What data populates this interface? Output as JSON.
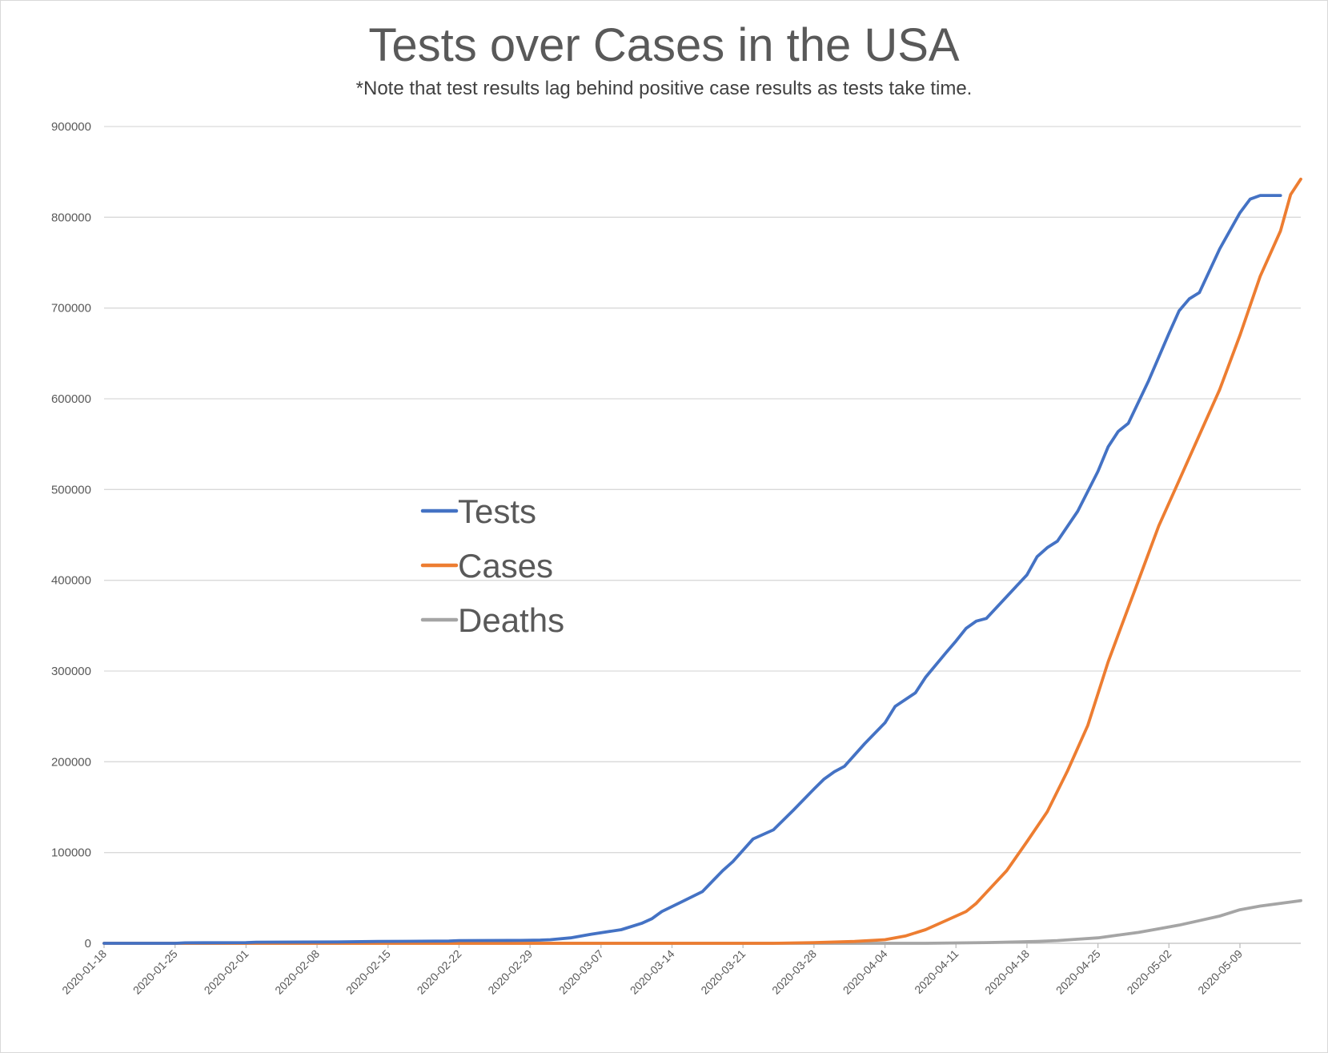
{
  "chart_data": {
    "type": "line",
    "title": "Tests over Cases in the USA",
    "subtitle": "*Note that test results lag behind positive case results as tests take time.",
    "xlabel": "",
    "ylabel": "",
    "ylim": [
      0,
      900000
    ],
    "yticks": [
      0,
      100000,
      200000,
      300000,
      400000,
      500000,
      600000,
      700000,
      800000,
      900000
    ],
    "x_start": "2020-01-18",
    "x_end": "2020-05-11",
    "xtick_labels": [
      "2020-01-18",
      "2020-01-25",
      "2020-02-01",
      "2020-02-08",
      "2020-02-15",
      "2020-02-22",
      "2020-02-29",
      "2020-03-07",
      "2020-03-14",
      "2020-03-21",
      "2020-03-28",
      "2020-04-04",
      "2020-04-11",
      "2020-04-18",
      "2020-04-25",
      "2020-05-02",
      "2020-05-09"
    ],
    "grid": true,
    "legend_position": "center-left",
    "series": [
      {
        "name": "Tests",
        "color": "#4472c4",
        "points": [
          [
            "2020-01-18",
            0
          ],
          [
            "2020-01-25",
            0
          ],
          [
            "2020-01-26",
            500
          ],
          [
            "2020-02-01",
            800
          ],
          [
            "2020-02-02",
            1200
          ],
          [
            "2020-02-10",
            1500
          ],
          [
            "2020-02-14",
            2000
          ],
          [
            "2020-02-21",
            2500
          ],
          [
            "2020-02-22",
            3000
          ],
          [
            "2020-02-28",
            3200
          ],
          [
            "2020-03-01",
            3500
          ],
          [
            "2020-03-02",
            4000
          ],
          [
            "2020-03-04",
            6000
          ],
          [
            "2020-03-06",
            10000
          ],
          [
            "2020-03-09",
            15000
          ],
          [
            "2020-03-11",
            22000
          ],
          [
            "2020-03-12",
            27000
          ],
          [
            "2020-03-13",
            35000
          ],
          [
            "2020-03-15",
            46000
          ],
          [
            "2020-03-17",
            57000
          ],
          [
            "2020-03-19",
            80000
          ],
          [
            "2020-03-20",
            90000
          ],
          [
            "2020-03-22",
            115000
          ],
          [
            "2020-03-24",
            125000
          ],
          [
            "2020-03-26",
            147000
          ],
          [
            "2020-03-28",
            170000
          ],
          [
            "2020-03-29",
            181000
          ],
          [
            "2020-03-30",
            189000
          ],
          [
            "2020-03-31",
            195000
          ],
          [
            "2020-04-02",
            220000
          ],
          [
            "2020-04-04",
            243000
          ],
          [
            "2020-04-05",
            261000
          ],
          [
            "2020-04-07",
            276000
          ],
          [
            "2020-04-08",
            293000
          ],
          [
            "2020-04-10",
            320000
          ],
          [
            "2020-04-11",
            333000
          ],
          [
            "2020-04-12",
            347000
          ],
          [
            "2020-04-13",
            355000
          ],
          [
            "2020-04-14",
            358000
          ],
          [
            "2020-04-16",
            382000
          ],
          [
            "2020-04-18",
            406000
          ],
          [
            "2020-04-19",
            426000
          ],
          [
            "2020-04-20",
            436000
          ],
          [
            "2020-04-21",
            443000
          ],
          [
            "2020-04-23",
            476000
          ],
          [
            "2020-04-25",
            520000
          ],
          [
            "2020-04-26",
            547000
          ],
          [
            "2020-04-27",
            564000
          ],
          [
            "2020-04-28",
            573000
          ],
          [
            "2020-04-30",
            620000
          ],
          [
            "2020-05-02",
            672000
          ],
          [
            "2020-05-03",
            697000
          ],
          [
            "2020-05-04",
            710000
          ],
          [
            "2020-05-05",
            717000
          ],
          [
            "2020-05-07",
            765000
          ],
          [
            "2020-05-08",
            785000
          ],
          [
            "2020-05-09",
            805000
          ],
          [
            "2020-05-10",
            820000
          ],
          [
            "2020-05-11",
            824000
          ],
          [
            "2020-05-12",
            824000
          ],
          [
            "2020-05-13",
            824000
          ]
        ]
      },
      {
        "name": "Cases",
        "color": "#ed7d31",
        "points": [
          [
            "2020-01-18",
            0
          ],
          [
            "2020-03-24",
            0
          ],
          [
            "2020-03-28",
            800
          ],
          [
            "2020-04-01",
            2000
          ],
          [
            "2020-04-04",
            4000
          ],
          [
            "2020-04-06",
            8000
          ],
          [
            "2020-04-08",
            15000
          ],
          [
            "2020-04-10",
            25000
          ],
          [
            "2020-04-12",
            35000
          ],
          [
            "2020-04-13",
            44000
          ],
          [
            "2020-04-14",
            56000
          ],
          [
            "2020-04-16",
            80000
          ],
          [
            "2020-04-18",
            112000
          ],
          [
            "2020-04-20",
            145000
          ],
          [
            "2020-04-22",
            190000
          ],
          [
            "2020-04-24",
            240000
          ],
          [
            "2020-04-26",
            310000
          ],
          [
            "2020-04-27",
            340000
          ],
          [
            "2020-04-29",
            400000
          ],
          [
            "2020-05-01",
            460000
          ],
          [
            "2020-05-03",
            510000
          ],
          [
            "2020-05-05",
            560000
          ],
          [
            "2020-05-07",
            610000
          ],
          [
            "2020-05-09",
            670000
          ],
          [
            "2020-05-11",
            735000
          ],
          [
            "2020-05-12",
            760000
          ],
          [
            "2020-05-13",
            785000
          ],
          [
            "2020-05-14",
            825000
          ],
          [
            "2020-05-15",
            842000
          ]
        ]
      },
      {
        "name": "Deaths",
        "color": "#a5a5a5",
        "points": [
          [
            "2020-01-18",
            0
          ],
          [
            "2020-04-08",
            0
          ],
          [
            "2020-04-14",
            800
          ],
          [
            "2020-04-17",
            1500
          ],
          [
            "2020-04-19",
            2000
          ],
          [
            "2020-04-21",
            3000
          ],
          [
            "2020-04-23",
            4500
          ],
          [
            "2020-04-25",
            6000
          ],
          [
            "2020-04-27",
            9000
          ],
          [
            "2020-04-29",
            12000
          ],
          [
            "2020-05-01",
            16000
          ],
          [
            "2020-05-03",
            20000
          ],
          [
            "2020-05-05",
            25000
          ],
          [
            "2020-05-07",
            30000
          ],
          [
            "2020-05-09",
            37000
          ],
          [
            "2020-05-11",
            41000
          ],
          [
            "2020-05-13",
            44000
          ],
          [
            "2020-05-15",
            47000
          ]
        ]
      }
    ]
  }
}
